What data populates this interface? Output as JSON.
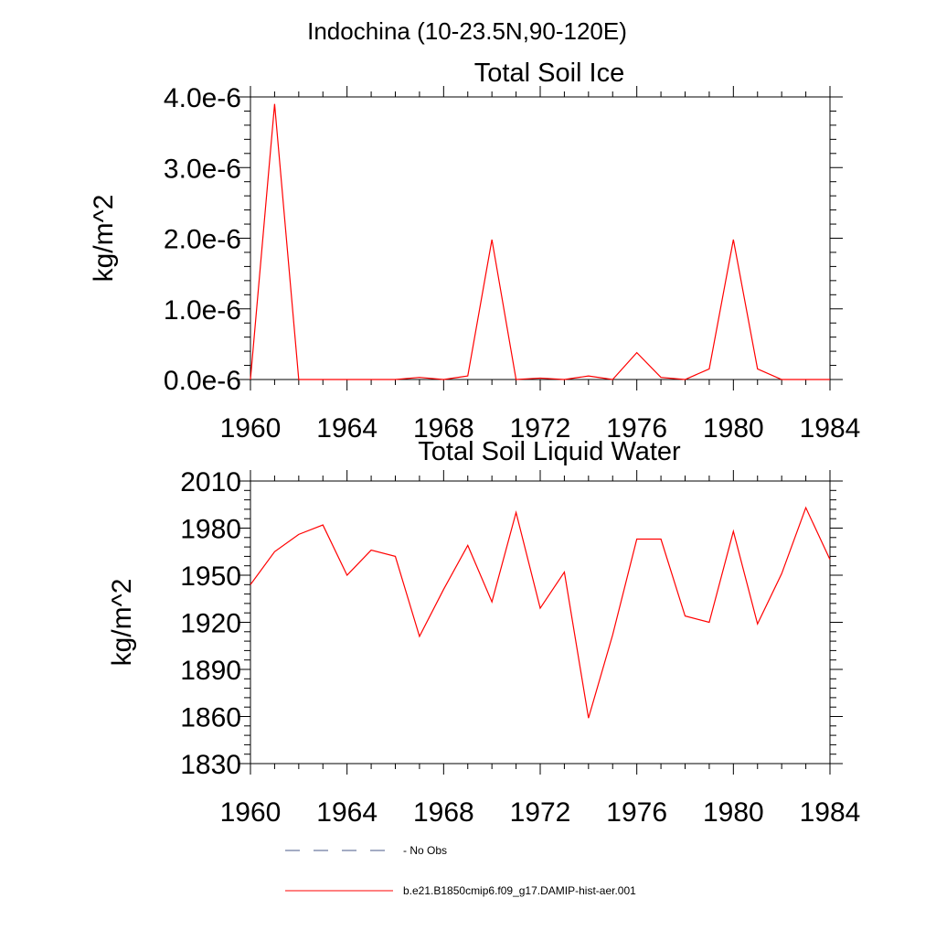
{
  "figure": {
    "title": "Indochina (10-23.5N,90-120E)"
  },
  "chart_data": [
    {
      "type": "line",
      "title": "Total Soil Ice",
      "xlabel": "",
      "ylabel": "kg/m^2",
      "xlim": [
        1960,
        1984
      ],
      "ylim": [
        0,
        4e-06
      ],
      "x_ticks": [
        "1960",
        "1964",
        "1968",
        "1972",
        "1976",
        "1980",
        "1984"
      ],
      "y_ticks": [
        "0.0e-6",
        "1.0e-6",
        "2.0e-6",
        "3.0e-6",
        "4.0e-6"
      ],
      "x": [
        1960,
        1961,
        1962,
        1963,
        1964,
        1965,
        1966,
        1967,
        1968,
        1969,
        1970,
        1971,
        1972,
        1973,
        1974,
        1975,
        1976,
        1977,
        1978,
        1979,
        1980,
        1981,
        1982,
        1983,
        1984
      ],
      "series": [
        {
          "name": "b.e21.B1850cmip6.f09_g17.DAMIP-hist-aer.001",
          "color": "#ff0000",
          "values": [
            0.0,
            3.9e-06,
            0.0,
            0.0,
            0.0,
            0.0,
            0.0,
            3e-08,
            0.0,
            5e-08,
            1.98e-06,
            0.0,
            2e-08,
            0.0,
            5e-08,
            0.0,
            3.8e-07,
            3e-08,
            0.0,
            1.5e-07,
            1.98e-06,
            1.5e-07,
            0.0,
            0.0,
            0.0
          ]
        }
      ]
    },
    {
      "type": "line",
      "title": "Total Soil Liquid Water",
      "xlabel": "",
      "ylabel": "kg/m^2",
      "xlim": [
        1960,
        1984
      ],
      "ylim": [
        1830,
        2010
      ],
      "x_ticks": [
        "1960",
        "1964",
        "1968",
        "1972",
        "1976",
        "1980",
        "1984"
      ],
      "y_ticks": [
        "1830",
        "1860",
        "1890",
        "1920",
        "1950",
        "1980",
        "2010"
      ],
      "x": [
        1960,
        1961,
        1962,
        1963,
        1964,
        1965,
        1966,
        1967,
        1968,
        1969,
        1970,
        1971,
        1972,
        1973,
        1974,
        1975,
        1976,
        1977,
        1978,
        1979,
        1980,
        1981,
        1982,
        1983,
        1984
      ],
      "series": [
        {
          "name": "b.e21.B1850cmip6.f09_g17.DAMIP-hist-aer.001",
          "color": "#ff0000",
          "values": [
            1944,
            1965,
            1976,
            1982,
            1950,
            1966,
            1962,
            1911,
            1941,
            1969,
            1933,
            1990,
            1929,
            1952,
            1859,
            1912,
            1973,
            1973,
            1924,
            1920,
            1978,
            1919,
            1951,
            1993,
            1960
          ]
        }
      ]
    }
  ],
  "legend": {
    "items": [
      {
        "label": "No Obs",
        "color": "#4a5a8a",
        "style": "dashed"
      },
      {
        "label": "b.e21.B1850cmip6.f09_g17.DAMIP-hist-aer.001",
        "color": "#ff0000",
        "style": "solid"
      }
    ]
  }
}
